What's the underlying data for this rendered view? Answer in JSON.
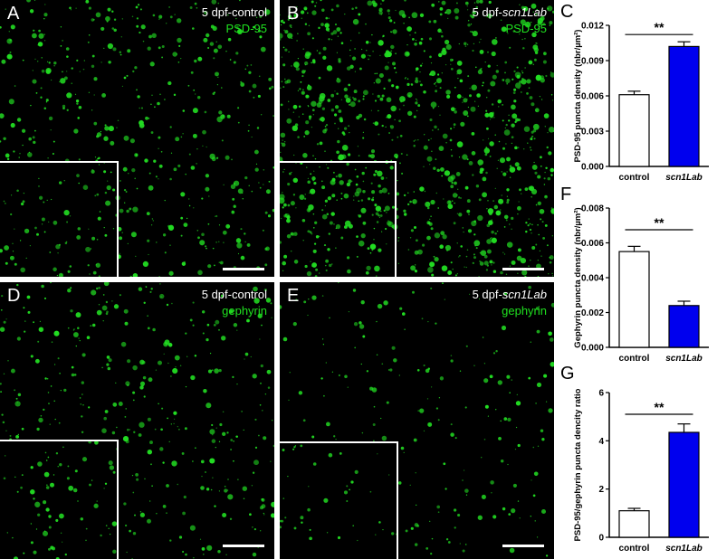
{
  "panels": [
    {
      "letter": "A",
      "condition_prefix": "5 dpf-control",
      "condition_italic": "",
      "marker": "PSD-95"
    },
    {
      "letter": "B",
      "condition_prefix": "5 dpf-",
      "condition_italic": "scn1Lab",
      "marker": "PSD-95"
    },
    {
      "letter": "D",
      "condition_prefix": "5 dpf-control",
      "condition_italic": "",
      "marker": "gephyrin"
    },
    {
      "letter": "E",
      "condition_prefix": "5 dpf-",
      "condition_italic": "scn1Lab",
      "marker": "gephyrin"
    }
  ],
  "colors": {
    "puncta": "#22dd22",
    "control_bar": "#ffffff",
    "scn1lab_bar": "#0000ee"
  },
  "chart_data": [
    {
      "letter": "C",
      "type": "bar",
      "categories": [
        "control",
        "scn1Lab"
      ],
      "values": [
        0.0061,
        0.0102
      ],
      "errors": [
        0.0003,
        0.0004
      ],
      "ylabel": "PSD-95 puncta density (nbr/µm²)",
      "ylim": [
        0,
        0.012
      ],
      "yticks": [
        "0.000",
        "0.003",
        "0.006",
        "0.009",
        "0.012"
      ],
      "ytick_values": [
        0,
        0.003,
        0.006,
        0.009,
        0.012
      ],
      "significance": "**"
    },
    {
      "letter": "F",
      "type": "bar",
      "categories": [
        "control",
        "scn1Lab"
      ],
      "values": [
        0.0055,
        0.0024
      ],
      "errors": [
        0.0003,
        0.00025
      ],
      "ylabel": "Gephyrin puncta density (nbr/µm²)",
      "ylim": [
        0,
        0.008
      ],
      "yticks": [
        "0.000",
        "0.002",
        "0.004",
        "0.006",
        "0.008"
      ],
      "ytick_values": [
        0,
        0.002,
        0.004,
        0.006,
        0.008
      ],
      "significance": "**"
    },
    {
      "letter": "G",
      "type": "bar",
      "categories": [
        "control",
        "scn1Lab"
      ],
      "values": [
        1.1,
        4.35
      ],
      "errors": [
        0.1,
        0.35
      ],
      "ylabel": "PSD-95/gephyrin puncta dencity ratio",
      "ylim": [
        0,
        6
      ],
      "yticks": [
        "0",
        "2",
        "4",
        "6"
      ],
      "ytick_values": [
        0,
        2,
        4,
        6
      ],
      "significance": "**"
    }
  ]
}
